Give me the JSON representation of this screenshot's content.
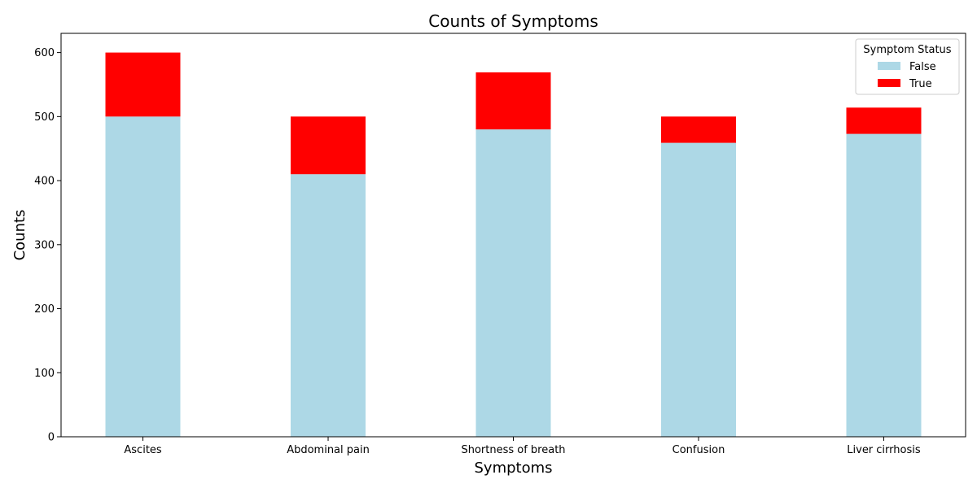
{
  "chart_data": {
    "type": "bar",
    "stacked": true,
    "title": "Counts of Symptoms",
    "xlabel": "Symptoms",
    "ylabel": "Counts",
    "categories": [
      "Ascites",
      "Abdominal pain",
      "Shortness of breath",
      "Confusion",
      "Liver cirrhosis"
    ],
    "series": [
      {
        "name": "False",
        "color": "#add8e6",
        "values": [
          500,
          410,
          480,
          459,
          473
        ]
      },
      {
        "name": "True",
        "color": "#ff0000",
        "values": [
          100,
          90,
          89,
          41,
          41
        ]
      }
    ],
    "ylim": [
      0,
      630
    ],
    "yticks": [
      0,
      100,
      200,
      300,
      400,
      500,
      600
    ],
    "grid": false,
    "legend": {
      "title": "Symptom Status",
      "position": "top-right"
    }
  }
}
